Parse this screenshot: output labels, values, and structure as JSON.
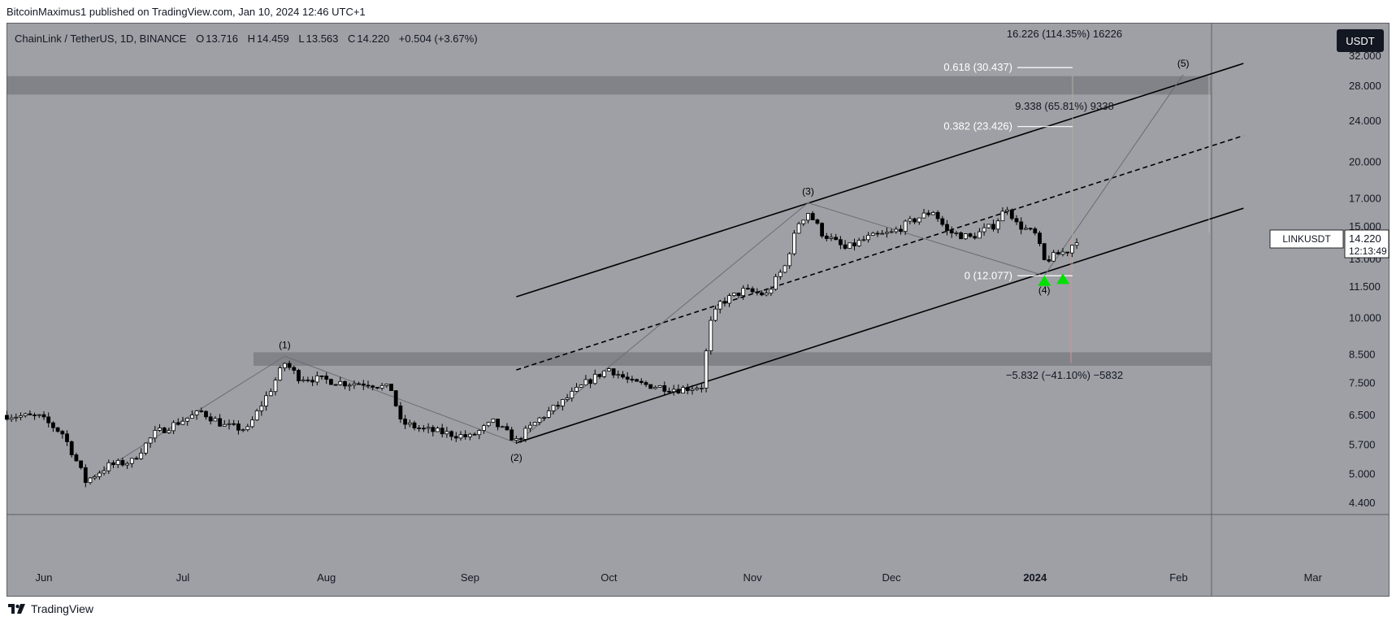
{
  "header": {
    "publisher_text": "BitcoinMaximus1 published on TradingView.com, Jan 10, 2024 12:46 UTC+1"
  },
  "legend": {
    "pair": "ChainLink / TetherUS, 1D, BINANCE",
    "open_label": "O",
    "open": "13.716",
    "high_label": "H",
    "high": "14.459",
    "low_label": "L",
    "low": "13.563",
    "close_label": "C",
    "close": "14.220",
    "change": "+0.504 (+3.67%)"
  },
  "currency_button": "USDT",
  "footer": {
    "brand": "TradingView"
  },
  "colors": {
    "background": "#9ea0a5",
    "zone": "#7c7e84",
    "candle_up": "#ffffff",
    "candle_down": "#000000",
    "channel": "#000000",
    "marker": "#00e000",
    "price_label_bg": "#ffffff"
  },
  "chart_data": {
    "type": "candlestick",
    "y_scale": "log",
    "ylim": [
      4.2,
      37
    ],
    "y_ticks": [
      {
        "value": 32,
        "label": "32.000"
      },
      {
        "value": 28,
        "label": "28.000"
      },
      {
        "value": 24,
        "label": "24.000"
      },
      {
        "value": 20,
        "label": "20.000"
      },
      {
        "value": 17,
        "label": "17.000"
      },
      {
        "value": 15,
        "label": "15.000"
      },
      {
        "value": 13,
        "label": "13.000"
      },
      {
        "value": 11.5,
        "label": "11.500"
      },
      {
        "value": 10,
        "label": "10.000"
      },
      {
        "value": 8.5,
        "label": "8.500"
      },
      {
        "value": 7.5,
        "label": "7.500"
      },
      {
        "value": 6.5,
        "label": "6.500"
      },
      {
        "value": 5.7,
        "label": "5.700"
      },
      {
        "value": 5,
        "label": "5.000"
      },
      {
        "value": 4.4,
        "label": "4.400"
      }
    ],
    "x_range": [
      "2024-05-24",
      "2025-03-25"
    ],
    "x_ticks": [
      {
        "date": "2023-06-01",
        "label": "Jun",
        "bold": false
      },
      {
        "date": "2023-07-01",
        "label": "Jul",
        "bold": false
      },
      {
        "date": "2023-08-01",
        "label": "Aug",
        "bold": false
      },
      {
        "date": "2023-09-01",
        "label": "Sep",
        "bold": false
      },
      {
        "date": "2023-10-01",
        "label": "Oct",
        "bold": false
      },
      {
        "date": "2023-11-01",
        "label": "Nov",
        "bold": false
      },
      {
        "date": "2023-12-01",
        "label": "Dec",
        "bold": false
      },
      {
        "date": "2024-01-01",
        "label": "2024",
        "bold": true
      },
      {
        "date": "2024-02-01",
        "label": "Feb",
        "bold": false
      },
      {
        "date": "2024-03-01",
        "label": "Mar",
        "bold": false
      }
    ],
    "price_path": [
      [
        "2023-05-24",
        6.5
      ],
      [
        "2023-05-31",
        6.45
      ],
      [
        "2023-06-05",
        6.0
      ],
      [
        "2023-06-10",
        4.85
      ],
      [
        "2023-06-15",
        5.2
      ],
      [
        "2023-06-20",
        5.3
      ],
      [
        "2023-06-25",
        6.0
      ],
      [
        "2023-06-30",
        6.3
      ],
      [
        "2023-07-05",
        6.6
      ],
      [
        "2023-07-10",
        6.2
      ],
      [
        "2023-07-15",
        6.1
      ],
      [
        "2023-07-20",
        7.3
      ],
      [
        "2023-07-23",
        8.2
      ],
      [
        "2023-07-26",
        7.7
      ],
      [
        "2023-08-01",
        7.6
      ],
      [
        "2023-08-05",
        7.5
      ],
      [
        "2023-08-10",
        7.5
      ],
      [
        "2023-08-15",
        7.3
      ],
      [
        "2023-08-17",
        6.3
      ],
      [
        "2023-08-22",
        6.1
      ],
      [
        "2023-08-27",
        6.0
      ],
      [
        "2023-09-01",
        5.9
      ],
      [
        "2023-09-06",
        6.3
      ],
      [
        "2023-09-11",
        5.8
      ],
      [
        "2023-09-16",
        6.4
      ],
      [
        "2023-09-21",
        6.9
      ],
      [
        "2023-09-26",
        7.5
      ],
      [
        "2023-10-01",
        8.0
      ],
      [
        "2023-10-06",
        7.5
      ],
      [
        "2023-10-11",
        7.4
      ],
      [
        "2023-10-16",
        7.3
      ],
      [
        "2023-10-21",
        7.4
      ],
      [
        "2023-10-23",
        9.8
      ],
      [
        "2023-10-25",
        10.7
      ],
      [
        "2023-10-30",
        11.3
      ],
      [
        "2023-11-04",
        11.1
      ],
      [
        "2023-11-08",
        12.6
      ],
      [
        "2023-11-11",
        15.3
      ],
      [
        "2023-11-13",
        16.0
      ],
      [
        "2023-11-16",
        14.6
      ],
      [
        "2023-11-21",
        13.6
      ],
      [
        "2023-11-26",
        14.3
      ],
      [
        "2023-12-01",
        14.6
      ],
      [
        "2023-12-06",
        15.5
      ],
      [
        "2023-12-10",
        16.1
      ],
      [
        "2023-12-13",
        14.7
      ],
      [
        "2023-12-18",
        14.3
      ],
      [
        "2023-12-23",
        15.1
      ],
      [
        "2023-12-26",
        16.4
      ],
      [
        "2023-12-28",
        15.2
      ],
      [
        "2024-01-01",
        14.5
      ],
      [
        "2024-01-03",
        12.9
      ],
      [
        "2024-01-06",
        13.3
      ],
      [
        "2024-01-08",
        13.5
      ],
      [
        "2024-01-10",
        14.22
      ]
    ],
    "wave_labels": [
      {
        "label": "(1)",
        "date": "2023-07-23",
        "value": 8.45,
        "pos": "above"
      },
      {
        "label": "(2)",
        "date": "2023-09-11",
        "value": 5.75,
        "pos": "below"
      },
      {
        "label": "(3)",
        "date": "2023-11-13",
        "value": 16.7,
        "pos": "above"
      },
      {
        "label": "(4)",
        "date": "2024-01-03",
        "value": 12.08,
        "pos": "below"
      },
      {
        "label": "(5)",
        "date": "2024-02-02",
        "value": 29.5,
        "pos": "above"
      }
    ],
    "projection": [
      {
        "date": "2024-01-03",
        "value": 12.08
      },
      {
        "date": "2024-02-02",
        "value": 29.5
      }
    ],
    "channel": {
      "lower": [
        {
          "date": "2023-09-11",
          "value": 5.75
        },
        {
          "date": "2024-02-15",
          "value": 16.3
        }
      ],
      "upper": [
        {
          "date": "2023-09-11",
          "value": 11.0
        },
        {
          "date": "2024-02-15",
          "value": 31.0
        }
      ],
      "middle": [
        {
          "date": "2023-09-11",
          "value": 7.95
        },
        {
          "date": "2024-02-15",
          "value": 22.5
        }
      ]
    },
    "zones": [
      {
        "from": 27.0,
        "to": 29.3
      },
      {
        "from": 8.1,
        "to": 8.6
      }
    ],
    "fib_levels": [
      {
        "label": "0.618 (30.437)",
        "value": 30.437
      },
      {
        "label": "0.382 (23.426)",
        "value": 23.426
      },
      {
        "label": "0 (12.077)",
        "value": 12.077
      }
    ],
    "measurements": [
      {
        "text": "16.226 (114.35%) 16226",
        "value": 35.3
      },
      {
        "text": "9.338 (65.81%) 9338",
        "value": 25.6
      },
      {
        "text": "−5.832 (−41.10%) −5832",
        "value": 7.75
      }
    ],
    "markers": [
      {
        "type": "up-triangle",
        "date": "2024-01-03",
        "value": 11.8
      },
      {
        "type": "up-triangle",
        "date": "2024-01-07",
        "value": 11.9
      }
    ],
    "current_price": {
      "symbol": "LINKUSDT",
      "value": "14.220",
      "countdown": "12:13:49"
    }
  }
}
